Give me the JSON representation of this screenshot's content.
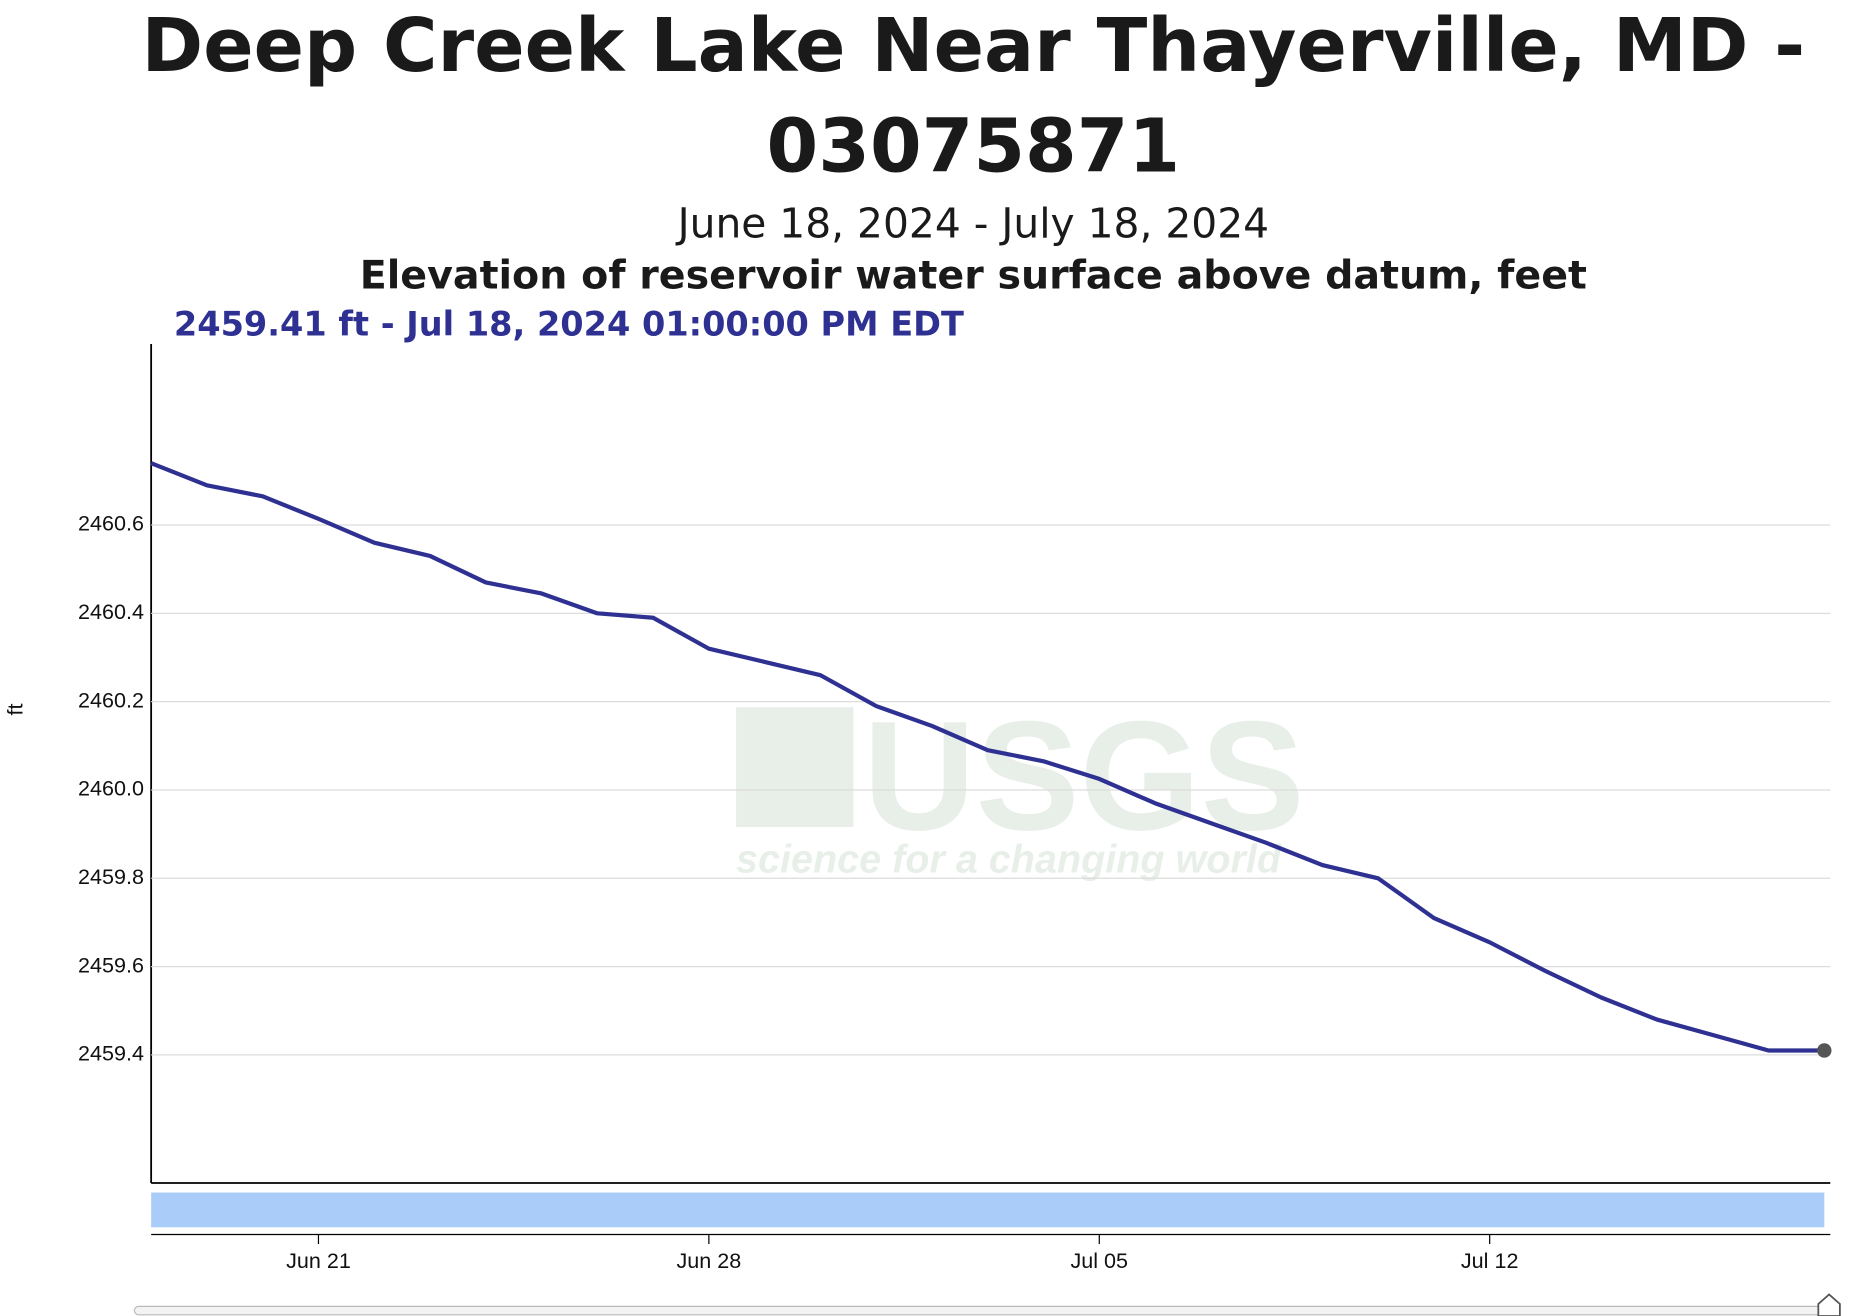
{
  "chart_data": {
    "type": "line",
    "title": "Deep Creek Lake Near Thayerville, MD -",
    "title_line2": "03075871",
    "subtitle": "June 18, 2024 - July 18, 2024",
    "parameter": "Elevation of reservoir water surface above datum, feet",
    "tooltip": "2459.41 ft - Jul 18, 2024 01:00:00 PM EDT",
    "y_label": "ft",
    "watermark": "USGS",
    "watermark_tagline": "science for a changing world",
    "x": [
      "Jun 18",
      "Jun 19",
      "Jun 20",
      "Jun 21",
      "Jun 22",
      "Jun 23",
      "Jun 24",
      "Jun 25",
      "Jun 26",
      "Jun 27",
      "Jun 28",
      "Jun 29",
      "Jun 30",
      "Jul 01",
      "Jul 02",
      "Jul 03",
      "Jul 04",
      "Jul 05",
      "Jul 06",
      "Jul 07",
      "Jul 08",
      "Jul 09",
      "Jul 10",
      "Jul 11",
      "Jul 12",
      "Jul 13",
      "Jul 14",
      "Jul 15",
      "Jul 16",
      "Jul 17",
      "Jul 18"
    ],
    "series": [
      {
        "name": "Elevation",
        "color": "#2e3192",
        "values": [
          2460.74,
          2460.69,
          2460.665,
          2460.614,
          2460.56,
          2460.53,
          2460.47,
          2460.445,
          2460.4,
          2460.39,
          2460.32,
          2460.29,
          2460.26,
          2460.19,
          2460.145,
          2460.09,
          2460.065,
          2460.025,
          2459.97,
          2459.925,
          2459.88,
          2459.83,
          2459.8,
          2459.71,
          2459.655,
          2459.59,
          2459.53,
          2459.48,
          2459.445,
          2459.41,
          2459.41
        ]
      }
    ],
    "xlim": [
      "Jun 18",
      "Jul 18"
    ],
    "xticks": [
      "Jun 21",
      "Jun 28",
      "Jul 05",
      "Jul 12"
    ],
    "ylim": [
      2459.11,
      2461.01
    ],
    "yticks": [
      {
        "value": 2459.4,
        "label": "2459.4"
      },
      {
        "value": 2459.6,
        "label": "2459.6"
      },
      {
        "value": 2459.8,
        "label": "2459.8"
      },
      {
        "value": 2460,
        "label": "2460.0"
      },
      {
        "value": 2460.2,
        "label": "2460.2"
      },
      {
        "value": 2460.4,
        "label": "2460.4"
      },
      {
        "value": 2460.6,
        "label": "2460.6"
      }
    ],
    "grid": true
  }
}
